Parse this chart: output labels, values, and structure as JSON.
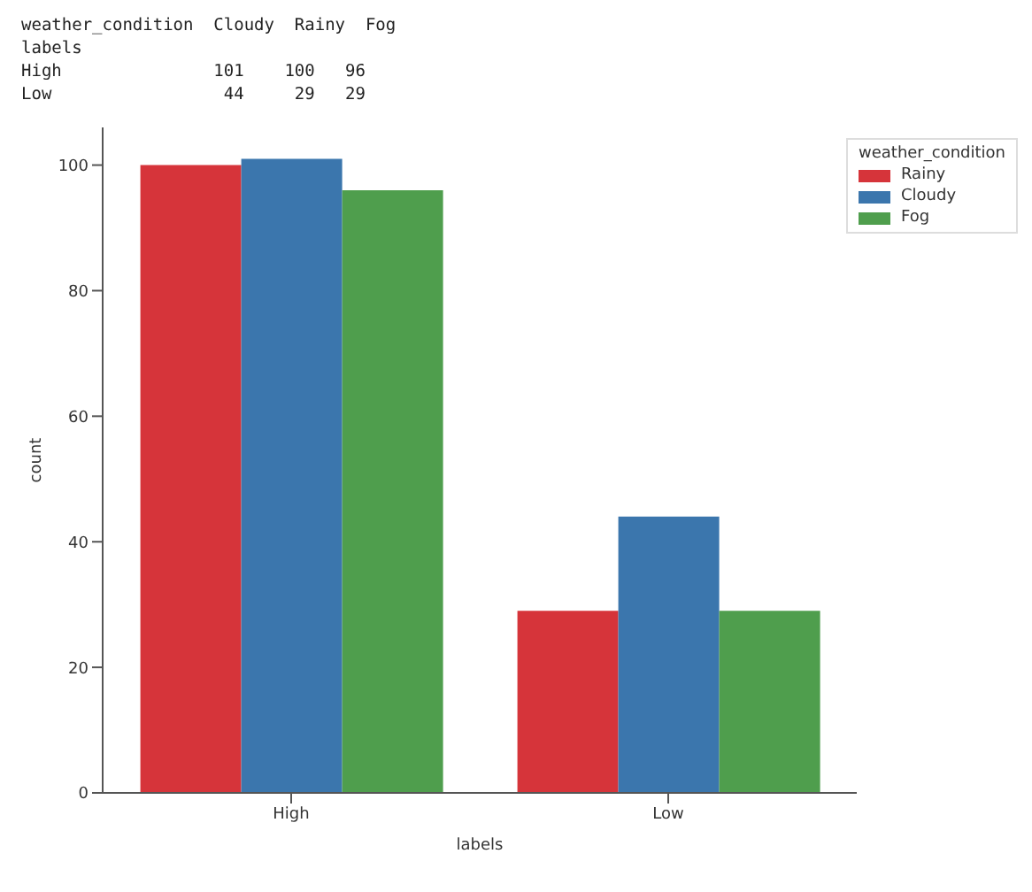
{
  "chart_data": {
    "type": "bar",
    "xlabel": "labels",
    "ylabel": "count",
    "legend_title": "weather_condition",
    "annotations": [
      "weather_condition  Cloudy  Rainy  Fog",
      "labels",
      "High               101    100   96",
      "Low                 44     29   29"
    ],
    "categories": [
      "High",
      "Low"
    ],
    "series": [
      {
        "name": "Rainy",
        "color": "#d6343a",
        "values": [
          100,
          29
        ]
      },
      {
        "name": "Cloudy",
        "color": "#3b76ad",
        "values": [
          101,
          44
        ]
      },
      {
        "name": "Fog",
        "color": "#4f9e4d",
        "values": [
          96,
          29
        ]
      }
    ],
    "ylim": [
      0,
      106
    ],
    "yticks": [
      0,
      20,
      40,
      60,
      80,
      100
    ],
    "grid": false,
    "legend": "top right"
  }
}
